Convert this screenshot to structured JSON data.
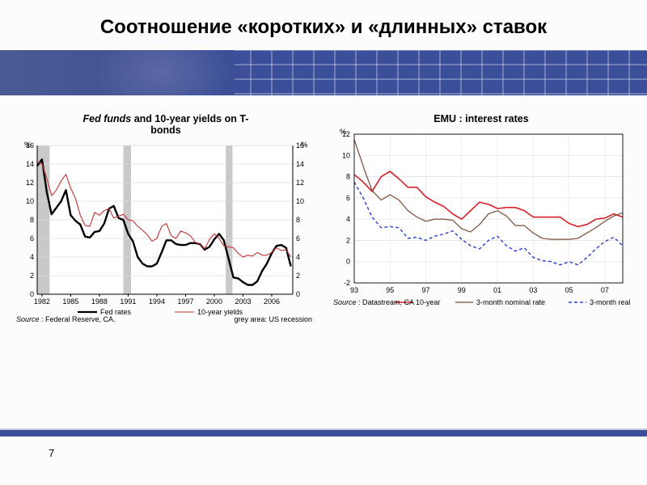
{
  "title": "Соотношение «коротких» и «длинных» ставок",
  "page_number": "7",
  "banner": {
    "bg": "#3b4e9a",
    "grid_color": "#ffffff"
  },
  "chart_left": {
    "type": "line",
    "title_html": "<i>Fed funds</i> and 10-year yields on T-<br>bonds",
    "y_label_left": "%",
    "y_label_right": "%",
    "ylim": [
      0,
      16
    ],
    "ytick_step": 2,
    "x_ticks": [
      "1982",
      "1985",
      "1988",
      "1991",
      "1994",
      "1997",
      "2000",
      "2003",
      "2006"
    ],
    "grid_color": "#dcdcdc",
    "axis_color": "#000000",
    "background_color": "#ffffff",
    "recession_color": "#c9c9c9",
    "recession_bands_x": [
      [
        1981.5,
        1982.8
      ],
      [
        1990.5,
        1991.3
      ],
      [
        2001.2,
        2001.9
      ]
    ],
    "series": [
      {
        "name": "Fed rates",
        "color": "#000000",
        "width": 2.4,
        "points": [
          [
            1981.5,
            13.8
          ],
          [
            1982.0,
            14.5
          ],
          [
            1982.5,
            11.0
          ],
          [
            1983.0,
            8.6
          ],
          [
            1983.5,
            9.3
          ],
          [
            1984.0,
            10.0
          ],
          [
            1984.5,
            11.2
          ],
          [
            1985.0,
            8.5
          ],
          [
            1985.5,
            7.9
          ],
          [
            1986.0,
            7.5
          ],
          [
            1986.5,
            6.2
          ],
          [
            1987.0,
            6.1
          ],
          [
            1987.5,
            6.7
          ],
          [
            1988.0,
            6.8
          ],
          [
            1988.5,
            7.6
          ],
          [
            1989.0,
            9.2
          ],
          [
            1989.5,
            9.5
          ],
          [
            1990.0,
            8.2
          ],
          [
            1990.5,
            8.0
          ],
          [
            1991.0,
            6.5
          ],
          [
            1991.5,
            5.7
          ],
          [
            1992.0,
            4.0
          ],
          [
            1992.5,
            3.3
          ],
          [
            1993.0,
            3.0
          ],
          [
            1993.5,
            3.0
          ],
          [
            1994.0,
            3.3
          ],
          [
            1994.5,
            4.5
          ],
          [
            1995.0,
            5.8
          ],
          [
            1995.5,
            5.8
          ],
          [
            1996.0,
            5.4
          ],
          [
            1996.5,
            5.3
          ],
          [
            1997.0,
            5.3
          ],
          [
            1997.5,
            5.5
          ],
          [
            1998.0,
            5.5
          ],
          [
            1998.5,
            5.4
          ],
          [
            1999.0,
            4.8
          ],
          [
            1999.5,
            5.1
          ],
          [
            2000.0,
            5.9
          ],
          [
            2000.5,
            6.5
          ],
          [
            2001.0,
            5.8
          ],
          [
            2001.5,
            3.8
          ],
          [
            2002.0,
            1.8
          ],
          [
            2002.5,
            1.7
          ],
          [
            2003.0,
            1.3
          ],
          [
            2003.5,
            1.0
          ],
          [
            2004.0,
            1.0
          ],
          [
            2004.5,
            1.4
          ],
          [
            2005.0,
            2.5
          ],
          [
            2005.5,
            3.3
          ],
          [
            2006.0,
            4.4
          ],
          [
            2006.5,
            5.2
          ],
          [
            2007.0,
            5.3
          ],
          [
            2007.5,
            5.0
          ],
          [
            2008.0,
            3.0
          ]
        ]
      },
      {
        "name": "10-year yields",
        "color": "#c23333",
        "width": 1.1,
        "points": [
          [
            1981.5,
            14.2
          ],
          [
            1982.0,
            14.0
          ],
          [
            1982.5,
            12.5
          ],
          [
            1983.0,
            10.6
          ],
          [
            1983.5,
            11.2
          ],
          [
            1984.0,
            12.2
          ],
          [
            1984.5,
            12.9
          ],
          [
            1985.0,
            11.4
          ],
          [
            1985.5,
            10.3
          ],
          [
            1986.0,
            8.5
          ],
          [
            1986.5,
            7.4
          ],
          [
            1987.0,
            7.3
          ],
          [
            1987.5,
            8.8
          ],
          [
            1988.0,
            8.5
          ],
          [
            1988.5,
            9.0
          ],
          [
            1989.0,
            9.2
          ],
          [
            1989.5,
            8.2
          ],
          [
            1990.0,
            8.4
          ],
          [
            1990.5,
            8.6
          ],
          [
            1991.0,
            8.0
          ],
          [
            1991.5,
            7.9
          ],
          [
            1992.0,
            7.3
          ],
          [
            1992.5,
            6.9
          ],
          [
            1993.0,
            6.4
          ],
          [
            1993.5,
            5.7
          ],
          [
            1994.0,
            6.0
          ],
          [
            1994.5,
            7.3
          ],
          [
            1995.0,
            7.6
          ],
          [
            1995.5,
            6.3
          ],
          [
            1996.0,
            6.0
          ],
          [
            1996.5,
            6.8
          ],
          [
            1997.0,
            6.6
          ],
          [
            1997.5,
            6.3
          ],
          [
            1998.0,
            5.6
          ],
          [
            1998.5,
            5.4
          ],
          [
            1999.0,
            4.9
          ],
          [
            1999.5,
            5.9
          ],
          [
            2000.0,
            6.5
          ],
          [
            2000.5,
            6.0
          ],
          [
            2001.0,
            5.2
          ],
          [
            2001.5,
            5.1
          ],
          [
            2002.0,
            5.0
          ],
          [
            2002.5,
            4.4
          ],
          [
            2003.0,
            4.0
          ],
          [
            2003.5,
            4.2
          ],
          [
            2004.0,
            4.1
          ],
          [
            2004.5,
            4.5
          ],
          [
            2005.0,
            4.2
          ],
          [
            2005.5,
            4.2
          ],
          [
            2006.0,
            4.5
          ],
          [
            2006.5,
            5.0
          ],
          [
            2007.0,
            4.7
          ],
          [
            2007.5,
            4.8
          ],
          [
            2008.0,
            4.0
          ]
        ]
      }
    ],
    "legend_items": [
      "Fed rates",
      "10-year yields"
    ],
    "source_text": "Source  : Federal Reserve, CA.",
    "grey_note": "grey area: US recession"
  },
  "chart_right": {
    "type": "line",
    "title": "EMU : interest rates",
    "y_label_left": "%",
    "ylim": [
      -2,
      12
    ],
    "ytick_step": 2,
    "x_ticks": [
      "93",
      "95",
      "97",
      "99",
      "01",
      "03",
      "05",
      "07"
    ],
    "x_domain": [
      1993,
      2008
    ],
    "grid_color": "#e4e4e4",
    "axis_color": "#000000",
    "background_color": "#ffffff",
    "series": [
      {
        "name": "10-year",
        "color": "#d71f28",
        "width": 1.6,
        "dash": null,
        "points": [
          [
            1993.0,
            8.2
          ],
          [
            1993.5,
            7.5
          ],
          [
            1994.0,
            6.6
          ],
          [
            1994.5,
            8.0
          ],
          [
            1995.0,
            8.5
          ],
          [
            1995.5,
            7.8
          ],
          [
            1996.0,
            7.0
          ],
          [
            1996.5,
            7.0
          ],
          [
            1997.0,
            6.1
          ],
          [
            1997.5,
            5.6
          ],
          [
            1998.0,
            5.2
          ],
          [
            1998.5,
            4.5
          ],
          [
            1999.0,
            4.0
          ],
          [
            1999.5,
            4.8
          ],
          [
            2000.0,
            5.6
          ],
          [
            2000.5,
            5.4
          ],
          [
            2001.0,
            5.0
          ],
          [
            2001.5,
            5.1
          ],
          [
            2002.0,
            5.1
          ],
          [
            2002.5,
            4.8
          ],
          [
            2003.0,
            4.2
          ],
          [
            2003.5,
            4.2
          ],
          [
            2004.0,
            4.2
          ],
          [
            2004.5,
            4.2
          ],
          [
            2005.0,
            3.6
          ],
          [
            2005.5,
            3.3
          ],
          [
            2006.0,
            3.5
          ],
          [
            2006.5,
            4.0
          ],
          [
            2007.0,
            4.1
          ],
          [
            2007.5,
            4.5
          ],
          [
            2008.0,
            4.2
          ]
        ]
      },
      {
        "name": "3-month nominal rate",
        "color": "#7a4a33",
        "width": 1.2,
        "dash": null,
        "points": [
          [
            1993.0,
            11.5
          ],
          [
            1993.3,
            10.0
          ],
          [
            1993.6,
            8.5
          ],
          [
            1994.0,
            6.7
          ],
          [
            1994.5,
            5.8
          ],
          [
            1995.0,
            6.3
          ],
          [
            1995.5,
            5.8
          ],
          [
            1996.0,
            4.8
          ],
          [
            1996.5,
            4.2
          ],
          [
            1997.0,
            3.8
          ],
          [
            1997.5,
            4.0
          ],
          [
            1998.0,
            4.0
          ],
          [
            1998.5,
            3.9
          ],
          [
            1999.0,
            3.1
          ],
          [
            1999.5,
            2.8
          ],
          [
            2000.0,
            3.5
          ],
          [
            2000.5,
            4.5
          ],
          [
            2001.0,
            4.8
          ],
          [
            2001.5,
            4.3
          ],
          [
            2002.0,
            3.4
          ],
          [
            2002.5,
            3.4
          ],
          [
            2003.0,
            2.7
          ],
          [
            2003.5,
            2.2
          ],
          [
            2004.0,
            2.1
          ],
          [
            2004.5,
            2.1
          ],
          [
            2005.0,
            2.1
          ],
          [
            2005.5,
            2.2
          ],
          [
            2006.0,
            2.7
          ],
          [
            2006.5,
            3.2
          ],
          [
            2007.0,
            3.8
          ],
          [
            2007.5,
            4.3
          ],
          [
            2008.0,
            4.6
          ]
        ]
      },
      {
        "name": "3-month real rate",
        "color": "#2a3fd0",
        "width": 1.4,
        "dash": "4,3",
        "points": [
          [
            1993.0,
            7.5
          ],
          [
            1993.5,
            6.0
          ],
          [
            1994.0,
            4.2
          ],
          [
            1994.5,
            3.2
          ],
          [
            1995.0,
            3.3
          ],
          [
            1995.5,
            3.2
          ],
          [
            1996.0,
            2.2
          ],
          [
            1996.5,
            2.3
          ],
          [
            1997.0,
            2.0
          ],
          [
            1997.5,
            2.4
          ],
          [
            1998.0,
            2.6
          ],
          [
            1998.5,
            2.9
          ],
          [
            1999.0,
            2.1
          ],
          [
            1999.5,
            1.5
          ],
          [
            2000.0,
            1.2
          ],
          [
            2000.5,
            2.0
          ],
          [
            2001.0,
            2.4
          ],
          [
            2001.5,
            1.5
          ],
          [
            2002.0,
            1.0
          ],
          [
            2002.5,
            1.3
          ],
          [
            2003.0,
            0.4
          ],
          [
            2003.5,
            0.1
          ],
          [
            2004.0,
            0.0
          ],
          [
            2004.5,
            -0.3
          ],
          [
            2005.0,
            0.0
          ],
          [
            2005.5,
            -0.3
          ],
          [
            2006.0,
            0.4
          ],
          [
            2006.5,
            1.2
          ],
          [
            2007.0,
            1.9
          ],
          [
            2007.5,
            2.3
          ],
          [
            2008.0,
            1.5
          ]
        ]
      }
    ],
    "legend_items": [
      "10-year",
      "3-month nominal rate",
      "3-month real rate"
    ],
    "source_text": "Source  : Datastream, CA"
  }
}
